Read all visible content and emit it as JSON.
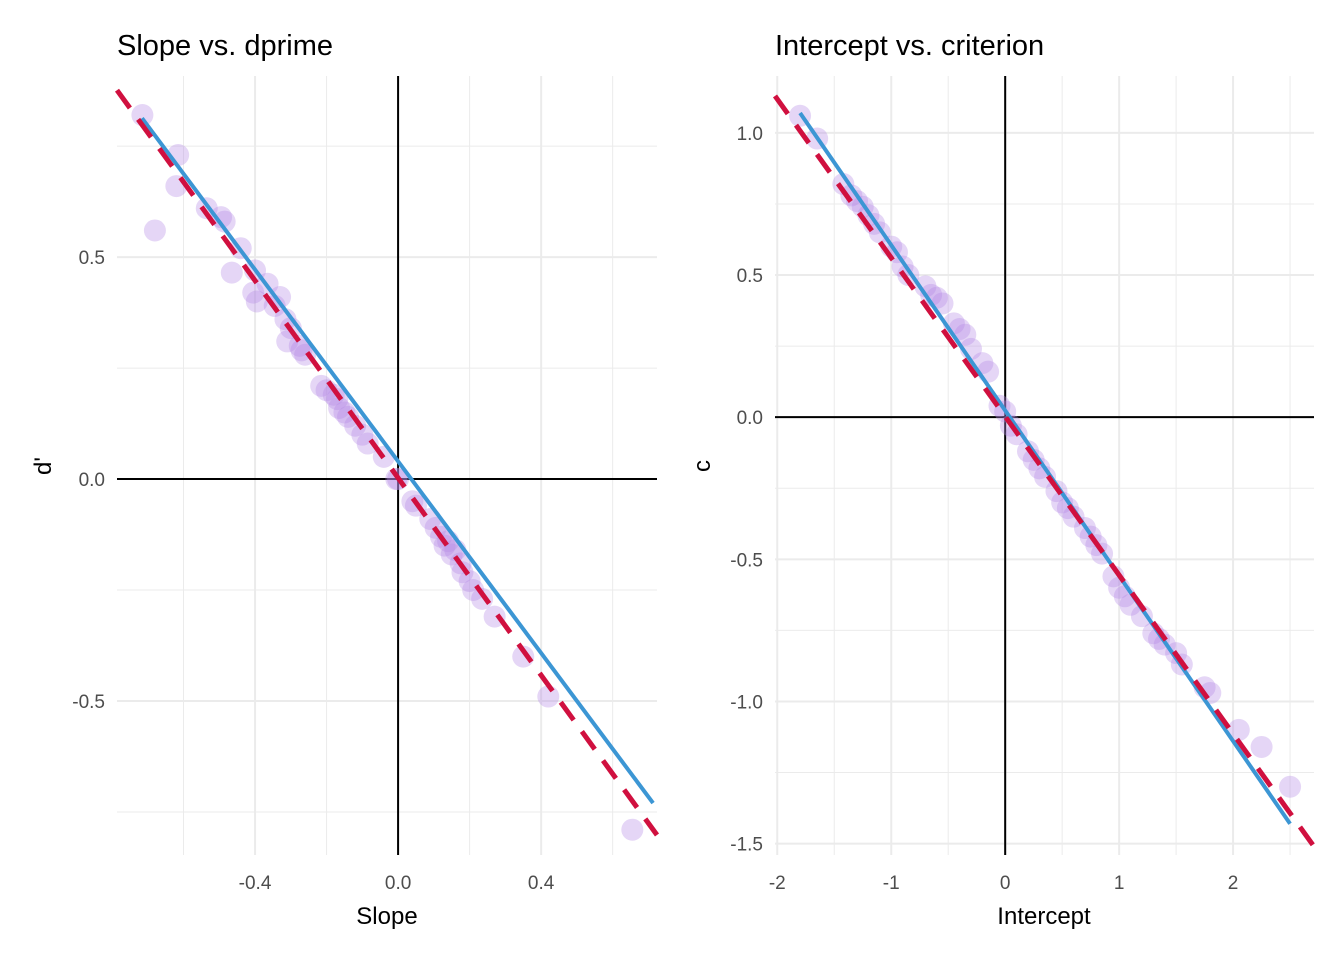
{
  "chart_data": [
    {
      "type": "scatter",
      "title": "Slope vs. dprime",
      "xlabel": "Slope",
      "ylabel": "d'",
      "xlim": [
        -0.786,
        0.724
      ],
      "ylim": [
        -0.847,
        0.908
      ],
      "xticks": [
        {
          "value": -0.4,
          "label": "-0.4"
        },
        {
          "value": 0.0,
          "label": "0.0"
        },
        {
          "value": 0.4,
          "label": "0.4"
        }
      ],
      "xminor": [
        -0.6,
        -0.2,
        0.2,
        0.6
      ],
      "yticks": [
        {
          "value": -0.5,
          "label": "-0.5"
        },
        {
          "value": 0.0,
          "label": "0.0"
        },
        {
          "value": 0.5,
          "label": "0.5"
        }
      ],
      "yminor": [
        -0.75,
        -0.25,
        0.25,
        0.75
      ],
      "grid": true,
      "reference_lines": {
        "x": 0,
        "y": 0
      },
      "fit_line": {
        "name": "fitted",
        "color": "#3c96d4",
        "x": [
          -0.716,
          0.713
        ],
        "y": [
          0.813,
          -0.73
        ]
      },
      "dashed_line": {
        "name": "reference",
        "color": "#d0103f",
        "x": [
          -0.786,
          0.724
        ],
        "y": [
          0.876,
          -0.802
        ]
      },
      "points": {
        "color": "#b48ae6",
        "x": [
          -0.715,
          -0.615,
          -0.62,
          -0.68,
          -0.535,
          -0.495,
          -0.485,
          -0.44,
          -0.4,
          -0.465,
          -0.365,
          -0.405,
          -0.395,
          -0.33,
          -0.345,
          -0.315,
          -0.3,
          -0.31,
          -0.275,
          -0.26,
          -0.27,
          -0.215,
          -0.2,
          -0.18,
          -0.17,
          -0.165,
          -0.15,
          -0.14,
          -0.12,
          -0.1,
          -0.085,
          -0.04,
          -0.005,
          0.0,
          0.04,
          0.05,
          0.09,
          0.105,
          0.12,
          0.13,
          0.14,
          0.15,
          0.16,
          0.175,
          0.18,
          0.2,
          0.21,
          0.235,
          0.27,
          0.35,
          0.42,
          0.655
        ],
        "y": [
          0.82,
          0.73,
          0.66,
          0.56,
          0.61,
          0.59,
          0.58,
          0.52,
          0.47,
          0.465,
          0.44,
          0.42,
          0.4,
          0.41,
          0.39,
          0.36,
          0.34,
          0.31,
          0.3,
          0.28,
          0.29,
          0.21,
          0.2,
          0.19,
          0.18,
          0.16,
          0.15,
          0.14,
          0.12,
          0.1,
          0.08,
          0.05,
          0.0,
          0.0,
          -0.05,
          -0.06,
          -0.09,
          -0.11,
          -0.13,
          -0.15,
          -0.14,
          -0.17,
          -0.16,
          -0.19,
          -0.21,
          -0.23,
          -0.25,
          -0.27,
          -0.31,
          -0.4,
          -0.49,
          -0.79
        ]
      }
    },
    {
      "type": "scatter",
      "title": "Intercept vs. criterion",
      "xlabel": "Intercept",
      "ylabel": "c",
      "xlim": [
        -2.02,
        2.71
      ],
      "ylim": [
        -1.54,
        1.2
      ],
      "xticks": [
        {
          "value": -2,
          "label": "-2"
        },
        {
          "value": -1,
          "label": "-1"
        },
        {
          "value": 0,
          "label": "0"
        },
        {
          "value": 1,
          "label": "1"
        },
        {
          "value": 2,
          "label": "2"
        }
      ],
      "xminor": [
        -1.5,
        -0.5,
        0.5,
        1.5,
        2.5
      ],
      "yticks": [
        {
          "value": -1.5,
          "label": "-1.5"
        },
        {
          "value": -1.0,
          "label": "-1.0"
        },
        {
          "value": -0.5,
          "label": "-0.5"
        },
        {
          "value": 0.0,
          "label": "0.0"
        },
        {
          "value": 0.5,
          "label": "0.5"
        },
        {
          "value": 1.0,
          "label": "1.0"
        }
      ],
      "yminor": [
        -1.25,
        -0.75,
        -0.25,
        0.25,
        0.75
      ],
      "grid": true,
      "reference_lines": {
        "x": 0,
        "y": 0
      },
      "fit_line": {
        "name": "fitted",
        "color": "#3c96d4",
        "x": [
          -1.8,
          2.5
        ],
        "y": [
          1.07,
          -1.43
        ]
      },
      "dashed_line": {
        "name": "reference",
        "color": "#d0103f",
        "x": [
          -2.02,
          2.71
        ],
        "y": [
          1.13,
          -1.51
        ]
      },
      "points": {
        "color": "#b48ae6",
        "x": [
          -1.8,
          -1.65,
          -1.42,
          -1.35,
          -1.3,
          -1.25,
          -1.2,
          -1.15,
          -1.1,
          -1.0,
          -0.95,
          -0.9,
          -0.85,
          -0.7,
          -0.65,
          -0.6,
          -0.55,
          -0.45,
          -0.4,
          -0.35,
          -0.3,
          -0.2,
          -0.15,
          -0.05,
          0.0,
          0.05,
          0.1,
          0.2,
          0.25,
          0.3,
          0.35,
          0.45,
          0.5,
          0.55,
          0.6,
          0.7,
          0.75,
          0.8,
          0.85,
          0.95,
          1.0,
          1.05,
          1.1,
          1.2,
          1.3,
          1.35,
          1.4,
          1.5,
          1.55,
          1.75,
          1.8,
          2.05,
          2.25,
          2.5
        ],
        "y": [
          1.06,
          0.98,
          0.82,
          0.78,
          0.76,
          0.74,
          0.71,
          0.68,
          0.65,
          0.6,
          0.58,
          0.53,
          0.5,
          0.46,
          0.43,
          0.42,
          0.4,
          0.33,
          0.31,
          0.29,
          0.24,
          0.19,
          0.16,
          0.04,
          0.02,
          -0.03,
          -0.06,
          -0.12,
          -0.15,
          -0.18,
          -0.21,
          -0.26,
          -0.3,
          -0.32,
          -0.35,
          -0.39,
          -0.42,
          -0.45,
          -0.48,
          -0.56,
          -0.6,
          -0.63,
          -0.66,
          -0.7,
          -0.76,
          -0.78,
          -0.8,
          -0.83,
          -0.87,
          -0.95,
          -0.97,
          -1.1,
          -1.16,
          -1.3
        ]
      }
    }
  ]
}
